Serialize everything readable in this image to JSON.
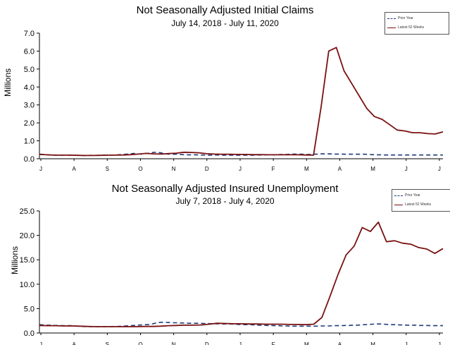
{
  "chart_data": [
    {
      "type": "line",
      "title": "Not Seasonally Adjusted Initial Claims",
      "subtitle": "July 14, 2018  - July 11, 2020",
      "xlabel": "",
      "ylabel": "Millions",
      "ylim": [
        0,
        7
      ],
      "yticks": [
        "0.0",
        "1.0",
        "2.0",
        "3.0",
        "4.0",
        "5.0",
        "6.0",
        "7.0"
      ],
      "month_ticks": [
        "J",
        "A",
        "S",
        "O",
        "N",
        "D",
        "J",
        "F",
        "M",
        "A",
        "M",
        "J",
        "J"
      ],
      "grid": false,
      "legend_position": "top-right",
      "series": [
        {
          "name": "Prior Year",
          "color": "#1f3a7a",
          "style": "dashed",
          "values": [
            0.26,
            0.24,
            0.22,
            0.2,
            0.2,
            0.2,
            0.2,
            0.2,
            0.2,
            0.19,
            0.19,
            0.18,
            0.18,
            0.19,
            0.19,
            0.19,
            0.2,
            0.2,
            0.2,
            0.21,
            0.22,
            0.23,
            0.25,
            0.26,
            0.3,
            0.27,
            0.26,
            0.29,
            0.31,
            0.35,
            0.36,
            0.33,
            0.28,
            0.26,
            0.25,
            0.25,
            0.24,
            0.23,
            0.22,
            0.22,
            0.22,
            0.21,
            0.21,
            0.2,
            0.2,
            0.21,
            0.21,
            0.2,
            0.2,
            0.2,
            0.2,
            0.2,
            0.2,
            0.2,
            0.2,
            0.2,
            0.21,
            0.21,
            0.22,
            0.23,
            0.22,
            0.23,
            0.24,
            0.24,
            0.25,
            0.26,
            0.25,
            0.25,
            0.24,
            0.24,
            0.25,
            0.26,
            0.27,
            0.27,
            0.27,
            0.26,
            0.26,
            0.26,
            0.25,
            0.25,
            0.25,
            0.25,
            0.25,
            0.25,
            0.24,
            0.23,
            0.22,
            0.22,
            0.21,
            0.21,
            0.21,
            0.21,
            0.21,
            0.21,
            0.21,
            0.21,
            0.21,
            0.21,
            0.21,
            0.21,
            0.21,
            0.21,
            0.21,
            0.21
          ]
        },
        {
          "name": "Latest 52 Weeks",
          "color": "#7a1010",
          "style": "solid",
          "values": [
            0.24,
            0.22,
            0.2,
            0.2,
            0.2,
            0.19,
            0.18,
            0.18,
            0.19,
            0.2,
            0.2,
            0.21,
            0.23,
            0.26,
            0.3,
            0.27,
            0.26,
            0.29,
            0.31,
            0.36,
            0.35,
            0.33,
            0.28,
            0.26,
            0.25,
            0.25,
            0.24,
            0.24,
            0.23,
            0.23,
            0.22,
            0.22,
            0.22,
            0.22,
            0.22,
            0.21,
            0.2,
            2.9,
            6.0,
            6.2,
            4.9,
            4.2,
            3.5,
            2.8,
            2.35,
            2.2,
            1.9,
            1.6,
            1.55,
            1.45,
            1.45,
            1.4,
            1.38,
            1.5
          ]
        }
      ]
    },
    {
      "type": "line",
      "title": "Not Seasonally Adjusted Insured Unemployment",
      "subtitle": "July 7, 2018  - July 4, 2020",
      "xlabel": "",
      "ylabel": "Millions",
      "ylim": [
        0,
        25
      ],
      "yticks": [
        "0.0",
        "5.0",
        "10.0",
        "15.0",
        "20.0",
        "25.0"
      ],
      "month_ticks": [
        "J",
        "A",
        "S",
        "O",
        "N",
        "D",
        "J",
        "F",
        "M",
        "A",
        "M",
        "J",
        "J"
      ],
      "grid": false,
      "legend_position": "top-right",
      "series": [
        {
          "name": "Prior Year",
          "color": "#1f3a7a",
          "style": "dashed",
          "values": [
            1.7,
            1.65,
            1.6,
            1.6,
            1.55,
            1.55,
            1.5,
            1.5,
            1.5,
            1.45,
            1.4,
            1.35,
            1.3,
            1.3,
            1.3,
            1.3,
            1.3,
            1.3,
            1.3,
            1.35,
            1.35,
            1.4,
            1.45,
            1.5,
            1.55,
            1.6,
            1.65,
            1.7,
            1.75,
            1.9,
            2.1,
            2.2,
            2.2,
            2.15,
            2.1,
            2.1,
            2.05,
            2.05,
            2.0,
            2.0,
            2.0,
            2.0,
            1.95,
            1.95,
            1.9,
            1.9,
            1.9,
            1.85,
            1.85,
            1.85,
            1.8,
            1.75,
            1.7,
            1.7,
            1.7,
            1.65,
            1.6,
            1.6,
            1.55,
            1.55,
            1.5,
            1.5,
            1.45,
            1.45,
            1.4,
            1.4,
            1.4,
            1.4,
            1.4,
            1.4,
            1.4,
            1.4,
            1.45,
            1.45,
            1.45,
            1.5,
            1.5,
            1.5,
            1.55,
            1.55,
            1.6,
            1.6,
            1.65,
            1.7,
            1.75,
            1.8,
            1.85,
            1.85,
            1.8,
            1.75,
            1.7,
            1.7,
            1.65,
            1.65,
            1.6,
            1.6,
            1.6,
            1.55,
            1.55,
            1.55,
            1.5,
            1.5,
            1.5,
            1.5
          ]
        },
        {
          "name": "Latest 52 Weeks",
          "color": "#7a1010",
          "style": "solid",
          "values": [
            1.55,
            1.5,
            1.5,
            1.45,
            1.45,
            1.4,
            1.35,
            1.3,
            1.3,
            1.3,
            1.3,
            1.3,
            1.3,
            1.35,
            1.35,
            1.4,
            1.5,
            1.55,
            1.6,
            1.6,
            1.65,
            1.8,
            2.0,
            1.95,
            1.9,
            1.9,
            1.85,
            1.85,
            1.8,
            1.8,
            1.8,
            1.75,
            1.75,
            1.7,
            1.8,
            3.2,
            7.5,
            12.0,
            16.0,
            17.8,
            21.6,
            20.8,
            22.7,
            18.7,
            18.9,
            18.4,
            18.2,
            17.5,
            17.2,
            16.3,
            17.3
          ]
        }
      ]
    }
  ]
}
